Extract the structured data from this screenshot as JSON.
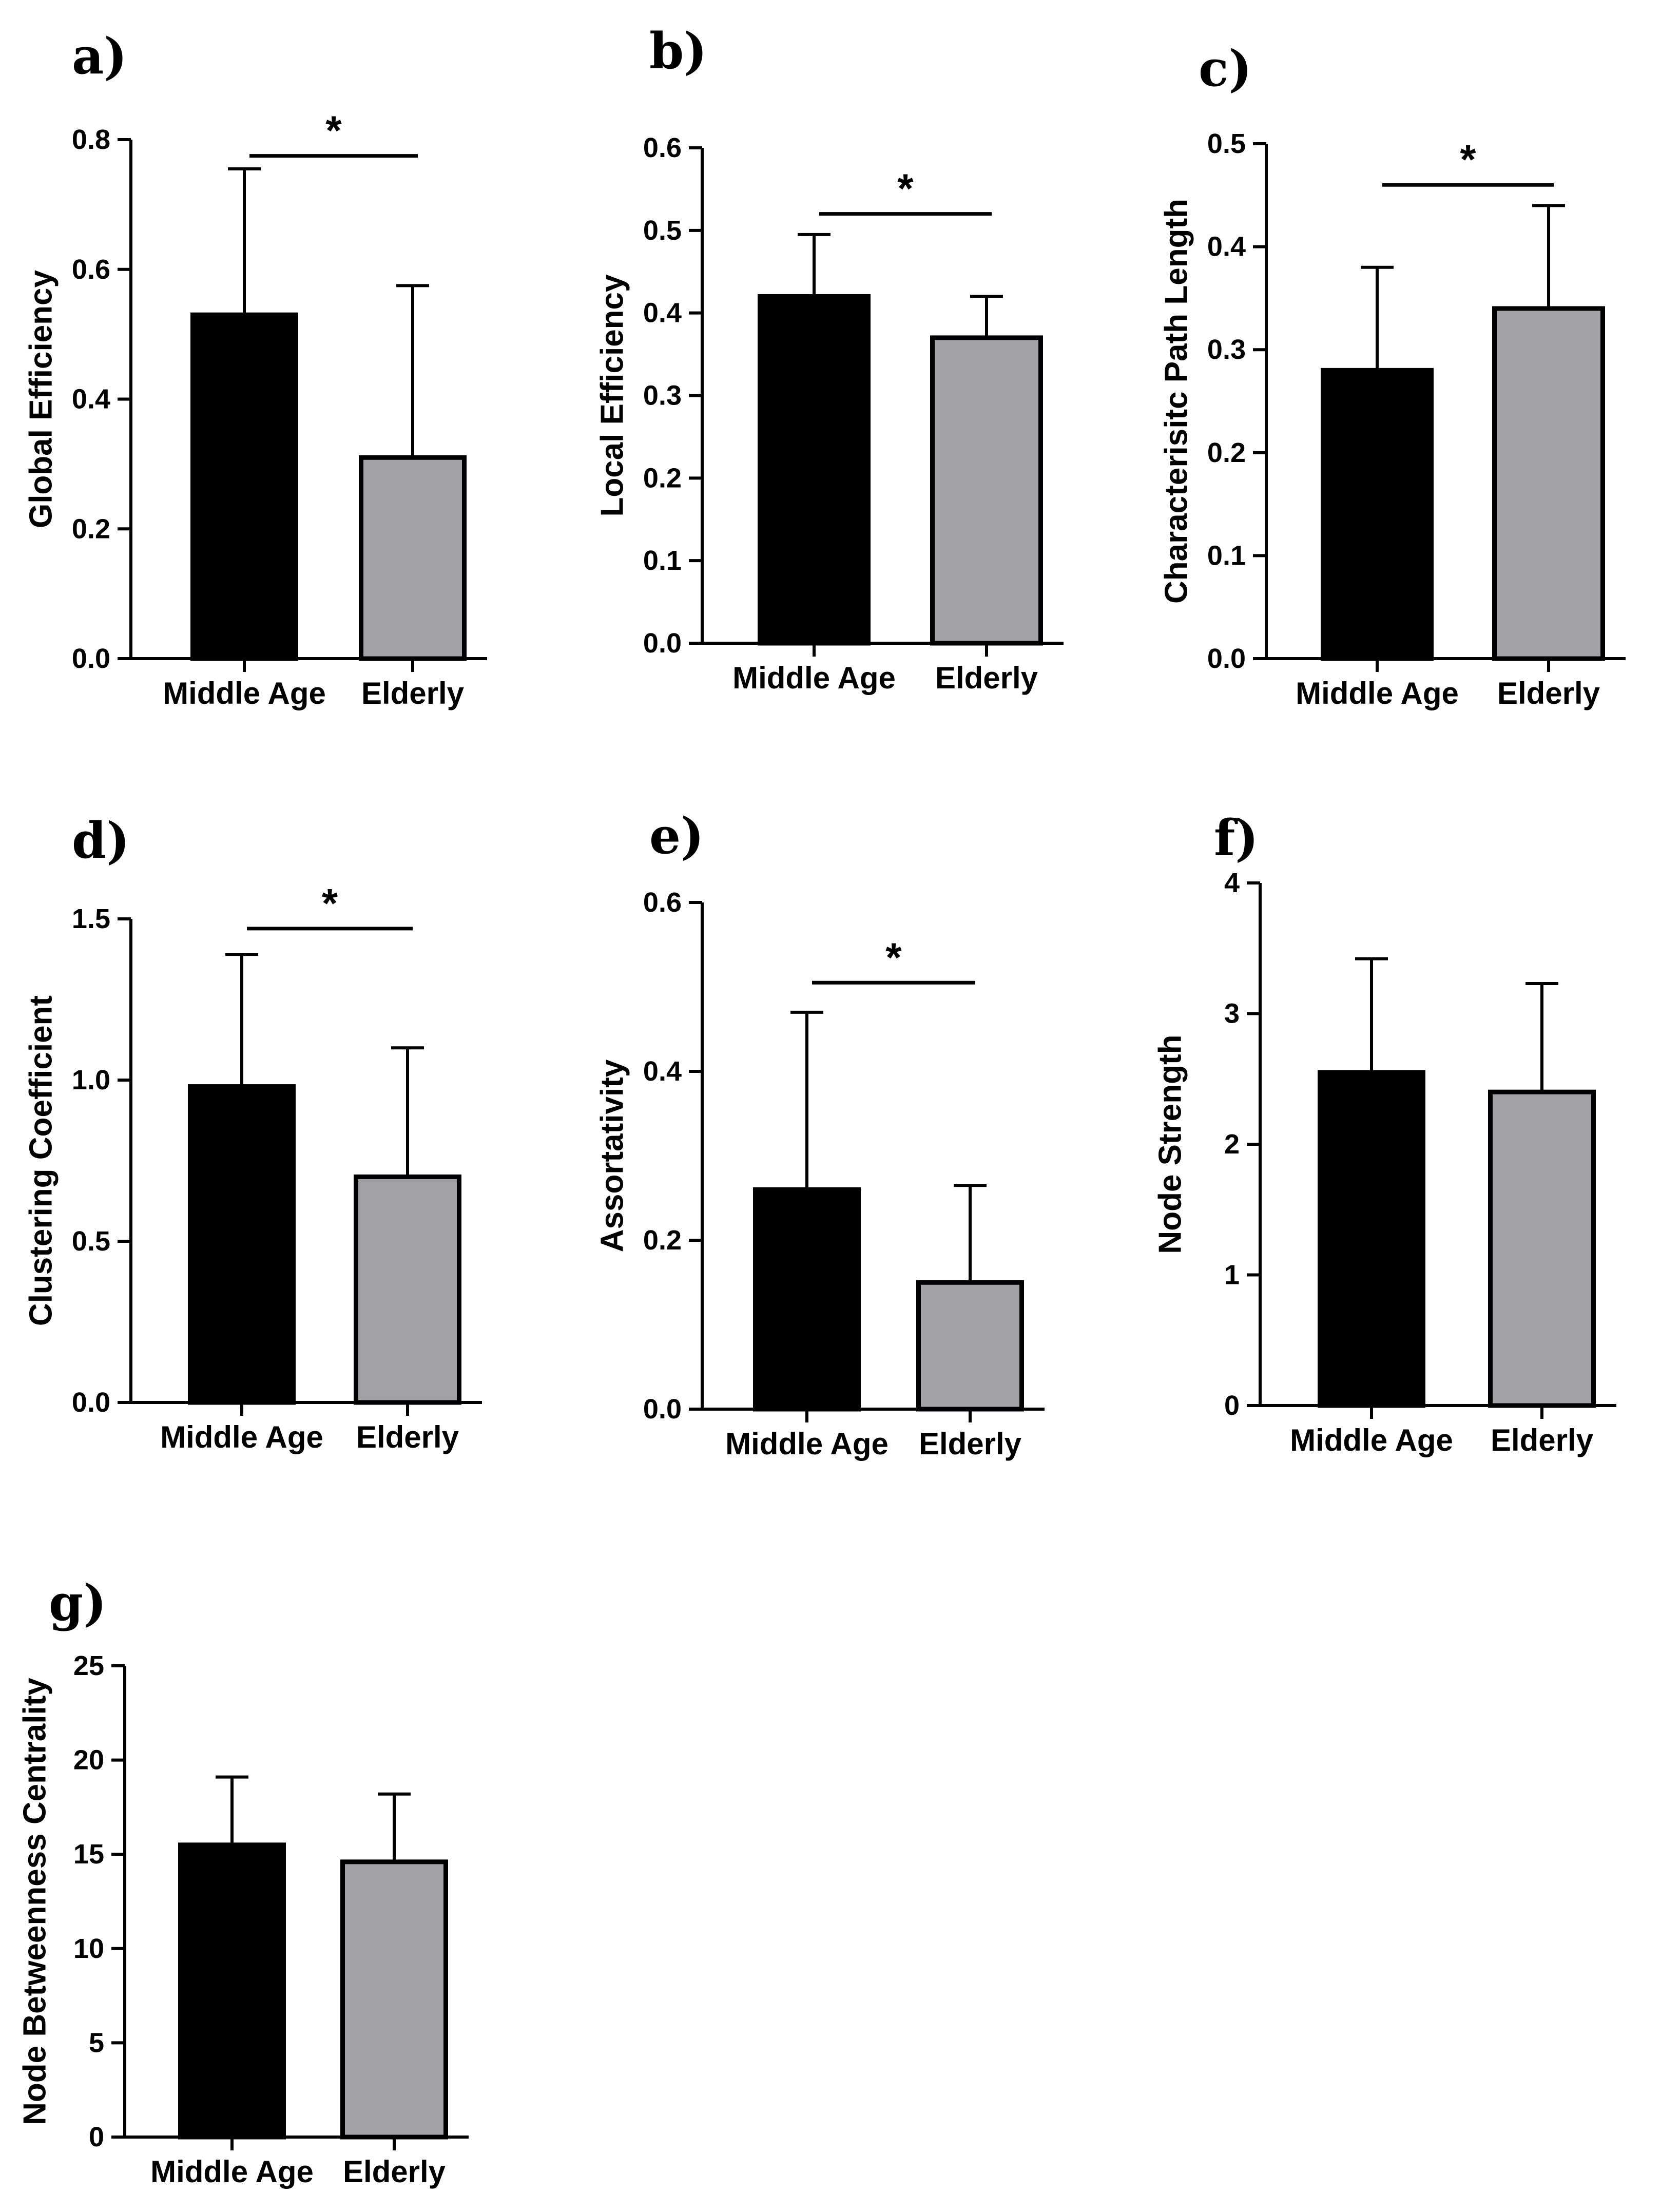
{
  "figure": {
    "colors": {
      "middle_age": "#000000",
      "elderly": "#a3a2a7",
      "axis": "#000000"
    }
  },
  "chart_data": [
    {
      "type": "bar",
      "panel": "a)",
      "title": "",
      "xlabel": "",
      "ylabel": "Global Efficiency",
      "categories": [
        "Middle Age",
        "Elderly"
      ],
      "values": [
        0.53,
        0.31
      ],
      "errors": [
        0.225,
        0.265
      ],
      "ylim": [
        0,
        0.8
      ],
      "yticks": [
        0,
        0.2,
        0.4,
        0.6,
        0.8
      ],
      "ytick_labels": [
        "0.0",
        "0.2",
        "0.4",
        "0.6",
        "0.8"
      ],
      "significance": "*",
      "sig_level": 0.775
    },
    {
      "type": "bar",
      "panel": "b)",
      "title": "",
      "xlabel": "",
      "ylabel": "Local Efficiency",
      "categories": [
        "Middle Age",
        "Elderly"
      ],
      "values": [
        0.42,
        0.37
      ],
      "errors": [
        0.075,
        0.05
      ],
      "ylim": [
        0,
        0.6
      ],
      "yticks": [
        0,
        0.1,
        0.2,
        0.3,
        0.4,
        0.5,
        0.6
      ],
      "ytick_labels": [
        "0.0",
        "0.1",
        "0.2",
        "0.3",
        "0.4",
        "0.5",
        "0.6"
      ],
      "significance": "*",
      "sig_level": 0.52
    },
    {
      "type": "bar",
      "panel": "c)",
      "title": "",
      "xlabel": "",
      "ylabel": "Characterisitc Path Length",
      "categories": [
        "Middle Age",
        "Elderly"
      ],
      "values": [
        0.28,
        0.34
      ],
      "errors": [
        0.1,
        0.1
      ],
      "ylim": [
        0,
        0.5
      ],
      "yticks": [
        0,
        0.1,
        0.2,
        0.3,
        0.4,
        0.5
      ],
      "ytick_labels": [
        "0.0",
        "0.1",
        "0.2",
        "0.3",
        "0.4",
        "0.5"
      ],
      "significance": "*",
      "sig_level": 0.46
    },
    {
      "type": "bar",
      "panel": "d)",
      "title": "",
      "xlabel": "",
      "ylabel": "Clustering Coefficient",
      "categories": [
        "Middle Age",
        "Elderly"
      ],
      "values": [
        0.98,
        0.7
      ],
      "errors": [
        0.41,
        0.4
      ],
      "ylim": [
        0,
        1.5
      ],
      "yticks": [
        0,
        0.5,
        1.0,
        1.5
      ],
      "ytick_labels": [
        "0.0",
        "0.5",
        "1.0",
        "1.5"
      ],
      "significance": "*",
      "sig_level": 1.47
    },
    {
      "type": "bar",
      "panel": "e)",
      "title": "",
      "xlabel": "",
      "ylabel": "Assortativity",
      "categories": [
        "Middle Age",
        "Elderly"
      ],
      "values": [
        0.26,
        0.15
      ],
      "errors": [
        0.21,
        0.115
      ],
      "ylim": [
        0,
        0.6
      ],
      "yticks": [
        0,
        0.2,
        0.4,
        0.6
      ],
      "ytick_labels": [
        "0.0",
        "0.2",
        "0.4",
        "0.6"
      ],
      "significance": "*",
      "sig_level": 0.505
    },
    {
      "type": "bar",
      "panel": "f)",
      "title": "",
      "xlabel": "",
      "ylabel": "Node Strength",
      "categories": [
        "Middle Age",
        "Elderly"
      ],
      "values": [
        2.55,
        2.4
      ],
      "errors": [
        0.87,
        0.83
      ],
      "ylim": [
        0,
        4
      ],
      "yticks": [
        0,
        1,
        2,
        3,
        4
      ],
      "ytick_labels": [
        "0",
        "1",
        "2",
        "3",
        "4"
      ],
      "significance": "",
      "sig_level": null
    },
    {
      "type": "bar",
      "panel": "g)",
      "title": "",
      "xlabel": "",
      "ylabel": "Node Betweenness Centrality",
      "categories": [
        "Middle Age",
        "Elderly"
      ],
      "values": [
        15.5,
        14.6
      ],
      "errors": [
        3.6,
        3.6
      ],
      "ylim": [
        0,
        25
      ],
      "yticks": [
        0,
        5,
        10,
        15,
        20,
        25
      ],
      "ytick_labels": [
        "0",
        "5",
        "10",
        "15",
        "20",
        "25"
      ],
      "significance": "",
      "sig_level": null
    }
  ]
}
